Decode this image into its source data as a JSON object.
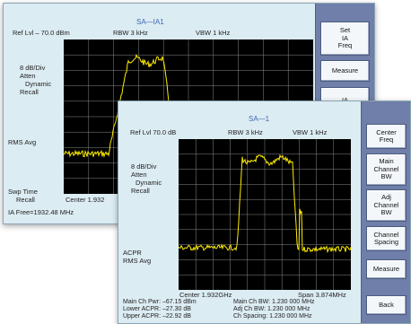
{
  "back_window": {
    "title": "SA—IA1",
    "ref_lvl": "Ref Lvl – 70.0 dBm",
    "rbw": "RBW 3 kHz",
    "vbw": "VBW 1 kHz",
    "scale_lines": [
      "8 dB/Div",
      "Atten",
      "Dynamic",
      "Recall"
    ],
    "rms_label": "RMS Avg",
    "swp_lines": [
      "Swp Time",
      "Recall"
    ],
    "center": "Center 1.932",
    "ia_free": "IA Free=1932.48 MHz",
    "softkeys": [
      "Set\nIA\nFreq",
      "Measure",
      "IA\nFreq To"
    ]
  },
  "front_window": {
    "title": "SA—1",
    "ref_lvl": "Ref Lvl 70.0 dB",
    "rbw": "RBW 3 kHz",
    "vbw": "VBW 1 kHz",
    "scale_lines": [
      "8 dB/Div",
      "Atten",
      "Dynamic",
      "Recall"
    ],
    "acpr_lines": [
      "ACPR",
      "RMS Avg"
    ],
    "center": "Center  1.932GHz",
    "span": "Span  3.874MHz",
    "meas_left": [
      "Main Ch Pwr: –67.15 dBm",
      "Lower ACPR: –27.30 dB",
      "Upper ACPR: –22.92 dB"
    ],
    "meas_right": [
      "Main Ch BW: 1.230 000 MHz",
      "Adj Ch BW: 1.230 000 MHz",
      "Ch Spacing: 1.230 000 MHz"
    ],
    "softkeys": [
      "Center\nFreq",
      "Main\nChannel\nBW",
      "Adj\nChannel\nBW",
      "Channel\nSpacing",
      "Measure",
      "Back"
    ]
  },
  "colors": {
    "window_bg": "#dcecf3",
    "title_text": "#3c67b0",
    "plot_bg": "#000000",
    "grid": "#8a8a8a",
    "trace": "#ffee00",
    "softkey_panel": "#6f7fa9"
  }
}
